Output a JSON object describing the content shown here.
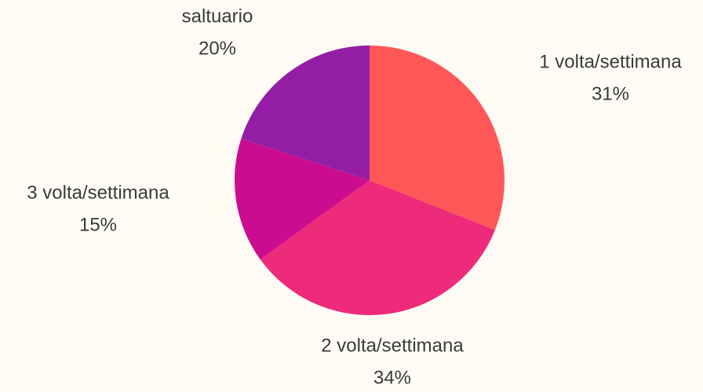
{
  "chart_data": {
    "type": "pie",
    "categories": [
      "1 volta/settimana",
      "2 volta/settimana",
      "3 volta/settimana",
      "saltuario"
    ],
    "values": [
      31,
      34,
      15,
      20
    ],
    "value_labels": [
      "31%",
      "34%",
      "15%",
      "20%"
    ],
    "colors": [
      "#ff5757",
      "#ee2a7b",
      "#cc0c8f",
      "#931ea5"
    ]
  }
}
